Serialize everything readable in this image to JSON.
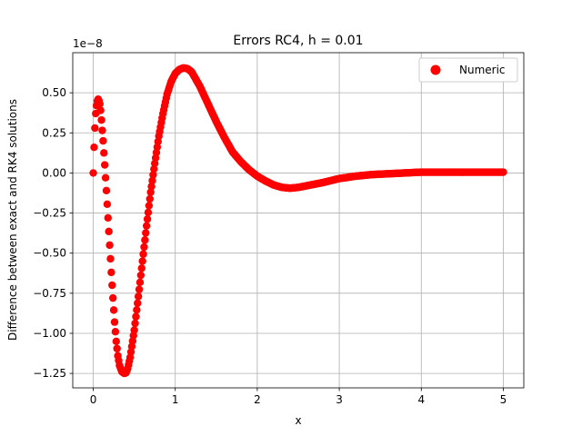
{
  "chart_data": {
    "type": "scatter",
    "title": "Errors RC4, h = 0.01",
    "xlabel": "x",
    "ylabel": "Difference between exact and RK4 solutions",
    "y_offset_label": "1e−8",
    "xlim": [
      -0.25,
      5.25
    ],
    "ylim": [
      -1.34,
      0.75
    ],
    "x_ticks": [
      0,
      1,
      2,
      3,
      4,
      5
    ],
    "x_tick_labels": [
      "0",
      "1",
      "2",
      "3",
      "4",
      "5"
    ],
    "y_ticks": [
      -1.25,
      -1.0,
      -0.75,
      -0.5,
      -0.25,
      0.0,
      0.25,
      0.5
    ],
    "y_tick_labels": [
      "−1.25",
      "−1.00",
      "−0.75",
      "−0.50",
      "−0.25",
      "0.00",
      "0.25",
      "0.50"
    ],
    "grid": true,
    "legend": "top-right",
    "series": [
      {
        "name": "Numeric",
        "color": "#ff0000",
        "marker": "circle",
        "x_start": 0,
        "x_end": 5,
        "x_step": 0.01,
        "keypoints": [
          [
            0.0,
            0.0
          ],
          [
            0.01,
            0.16
          ],
          [
            0.02,
            0.28
          ],
          [
            0.03,
            0.37
          ],
          [
            0.04,
            0.42
          ],
          [
            0.05,
            0.45
          ],
          [
            0.06,
            0.46
          ],
          [
            0.07,
            0.45
          ],
          [
            0.08,
            0.43
          ],
          [
            0.09,
            0.39
          ],
          [
            0.1,
            0.33
          ],
          [
            0.12,
            0.2
          ],
          [
            0.14,
            0.05
          ],
          [
            0.16,
            -0.11
          ],
          [
            0.18,
            -0.28
          ],
          [
            0.2,
            -0.45
          ],
          [
            0.22,
            -0.62
          ],
          [
            0.24,
            -0.78
          ],
          [
            0.26,
            -0.93
          ],
          [
            0.28,
            -1.05
          ],
          [
            0.3,
            -1.14
          ],
          [
            0.32,
            -1.2
          ],
          [
            0.35,
            -1.24
          ],
          [
            0.38,
            -1.25
          ],
          [
            0.4,
            -1.245
          ],
          [
            0.42,
            -1.22
          ],
          [
            0.45,
            -1.15
          ],
          [
            0.5,
            -0.98
          ],
          [
            0.55,
            -0.77
          ],
          [
            0.6,
            -0.55
          ],
          [
            0.65,
            -0.33
          ],
          [
            0.7,
            -0.12
          ],
          [
            0.75,
            0.06
          ],
          [
            0.8,
            0.23
          ],
          [
            0.85,
            0.37
          ],
          [
            0.9,
            0.49
          ],
          [
            0.95,
            0.57
          ],
          [
            1.0,
            0.62
          ],
          [
            1.05,
            0.645
          ],
          [
            1.1,
            0.655
          ],
          [
            1.15,
            0.65
          ],
          [
            1.2,
            0.63
          ],
          [
            1.3,
            0.54
          ],
          [
            1.4,
            0.43
          ],
          [
            1.5,
            0.32
          ],
          [
            1.6,
            0.22
          ],
          [
            1.7,
            0.13
          ],
          [
            1.8,
            0.07
          ],
          [
            1.9,
            0.02
          ],
          [
            2.0,
            -0.02
          ],
          [
            2.1,
            -0.05
          ],
          [
            2.2,
            -0.075
          ],
          [
            2.3,
            -0.09
          ],
          [
            2.4,
            -0.095
          ],
          [
            2.5,
            -0.09
          ],
          [
            2.6,
            -0.08
          ],
          [
            2.8,
            -0.06
          ],
          [
            3.0,
            -0.035
          ],
          [
            3.2,
            -0.02
          ],
          [
            3.4,
            -0.01
          ],
          [
            3.6,
            -0.005
          ],
          [
            3.8,
            0.0
          ],
          [
            4.0,
            0.005
          ],
          [
            4.5,
            0.005
          ],
          [
            5.0,
            0.005
          ]
        ]
      }
    ]
  }
}
